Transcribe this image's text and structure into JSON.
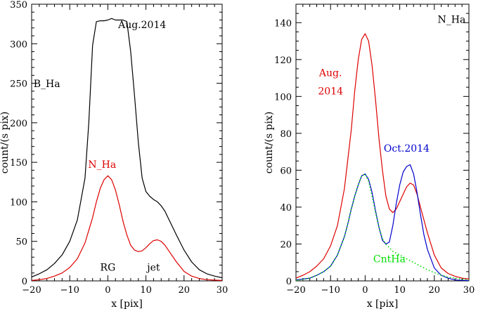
{
  "chart_data": [
    {
      "type": "line",
      "xlabel": "x [pix]",
      "ylabel": "count/(s pix)",
      "xlim": [
        -20,
        30
      ],
      "ylim": [
        0,
        350
      ],
      "xticks": [
        "−20",
        "−10",
        "0",
        "10",
        "20",
        "30"
      ],
      "yticks": [
        "0",
        "50",
        "100",
        "150",
        "200",
        "250",
        "300",
        "350"
      ],
      "grid": false,
      "annotations": [
        {
          "text": "Aug.2014",
          "x": 9,
          "y": 320,
          "color": "#000000"
        },
        {
          "text": "B_Ha",
          "x": -16,
          "y": 245,
          "color": "#000000"
        },
        {
          "text": "N_Ha",
          "x": -1.5,
          "y": 143,
          "color": "#dd0000"
        },
        {
          "text": "RG",
          "x": 0,
          "y": 13,
          "color": "#000000"
        },
        {
          "text": "jet",
          "x": 12,
          "y": 13,
          "color": "#000000"
        }
      ],
      "series": [
        {
          "name": "B_Ha",
          "color": "#000000",
          "style": "solid",
          "x": [
            -20,
            -18,
            -16,
            -14,
            -12,
            -10,
            -8,
            -6,
            -5,
            -4,
            -3,
            -2,
            -1,
            0,
            1,
            2,
            3,
            4,
            5,
            6,
            7,
            8,
            9,
            10,
            11,
            12,
            13,
            14,
            15,
            16,
            18,
            20,
            22,
            24,
            26,
            28,
            30
          ],
          "y": [
            5,
            9,
            14,
            22,
            33,
            50,
            77,
            130,
            200,
            298,
            328,
            329,
            329,
            330,
            332,
            330,
            330,
            330,
            328,
            290,
            235,
            175,
            130,
            113,
            107,
            103,
            100,
            95,
            88,
            78,
            58,
            39,
            24,
            14,
            9,
            6,
            4
          ]
        },
        {
          "name": "N_Ha",
          "color": "#dd0000",
          "style": "solid",
          "x": [
            -20,
            -18,
            -16,
            -14,
            -12,
            -10,
            -8,
            -6,
            -4,
            -3,
            -2,
            -1,
            0,
            1,
            2,
            3,
            4,
            5,
            6,
            7,
            8,
            9,
            10,
            11,
            12,
            13,
            14,
            15,
            16,
            18,
            20,
            22,
            24,
            26,
            28,
            30
          ],
          "y": [
            0.5,
            1.5,
            3,
            6,
            10,
            17,
            28,
            48,
            80,
            100,
            117,
            128,
            133,
            128,
            115,
            96,
            75,
            58,
            45,
            39,
            37,
            38,
            42,
            47,
            51,
            52,
            50,
            45,
            38,
            24,
            12,
            6,
            3,
            1.5,
            1,
            0.5
          ]
        }
      ]
    },
    {
      "type": "line",
      "title": "N_Ha",
      "xlabel": "x [pix]",
      "ylabel": "count/(s pix)",
      "xlim": [
        -20,
        30
      ],
      "ylim": [
        0,
        150
      ],
      "xticks": [
        "−20",
        "−10",
        "0",
        "10",
        "20",
        "30"
      ],
      "yticks": [
        "0",
        "20",
        "40",
        "60",
        "80",
        "100",
        "120",
        "140"
      ],
      "grid": false,
      "annotations": [
        {
          "text": "N_Ha",
          "x": 25,
          "y": 140,
          "color": "#000000"
        },
        {
          "text": "Aug.",
          "x": -10,
          "y": 111,
          "color": "#dd0000"
        },
        {
          "text": "2014",
          "x": -10,
          "y": 101,
          "color": "#dd0000"
        },
        {
          "text": "Oct.2014",
          "x": 12,
          "y": 70,
          "color": "#0000cc"
        },
        {
          "text": "CntHa",
          "x": 7,
          "y": 10,
          "color": "#00dd00"
        }
      ],
      "series": [
        {
          "name": "Aug. 2014",
          "color": "#dd0000",
          "style": "solid",
          "x": [
            -20,
            -18,
            -16,
            -14,
            -12,
            -10,
            -8,
            -6,
            -4,
            -3,
            -2,
            -1,
            0,
            1,
            2,
            3,
            4,
            5,
            6,
            7,
            8,
            9,
            10,
            11,
            12,
            13,
            14,
            15,
            16,
            18,
            20,
            22,
            24,
            26,
            28,
            30
          ],
          "y": [
            1.5,
            3,
            5,
            8,
            12,
            19,
            30,
            50,
            82,
            103,
            120,
            131,
            134,
            130,
            117,
            98,
            77,
            60,
            46,
            39,
            37,
            39,
            43,
            47,
            51,
            53,
            52,
            47,
            40,
            26,
            14,
            7,
            4,
            2.5,
            1.5,
            1
          ]
        },
        {
          "name": "Oct.2014",
          "color": "#0000cc",
          "style": "solid",
          "x": [
            -20,
            -18,
            -16,
            -14,
            -12,
            -10,
            -8,
            -6,
            -5,
            -4,
            -3,
            -2,
            -1,
            0,
            1,
            2,
            3,
            4,
            5,
            6,
            7,
            8,
            9,
            10,
            11,
            12,
            13,
            14,
            15,
            16,
            17,
            18,
            20,
            22,
            24,
            26,
            28,
            30
          ],
          "y": [
            0.5,
            1,
            1.5,
            3,
            5,
            8,
            14,
            24,
            31,
            39,
            46,
            52,
            57,
            58,
            55,
            48,
            38,
            29,
            22,
            20,
            21,
            30,
            42,
            52,
            59,
            62,
            63,
            58,
            48,
            36,
            25,
            17,
            7,
            3,
            1.5,
            0.5,
            0.3,
            0.2
          ]
        },
        {
          "name": "CntHa",
          "color": "#00dd00",
          "style": "dotted",
          "x": [
            -20,
            -18,
            -16,
            -14,
            -12,
            -10,
            -8,
            -6,
            -5,
            -4,
            -3,
            -2,
            -1,
            0,
            1,
            2,
            3,
            4,
            5,
            6,
            7,
            8,
            9,
            10,
            11,
            12,
            13,
            14,
            15,
            16,
            18,
            20,
            22,
            24,
            26,
            28,
            30
          ],
          "y": [
            0.3,
            0.8,
            1.5,
            3,
            5,
            8,
            14,
            24,
            31,
            39,
            46,
            52,
            57,
            58,
            54,
            46,
            37,
            29,
            23,
            20,
            18,
            16,
            15,
            14,
            13,
            12,
            11,
            10,
            9,
            8,
            6,
            4.5,
            3,
            2,
            1.5,
            1,
            0.5
          ]
        }
      ]
    }
  ]
}
